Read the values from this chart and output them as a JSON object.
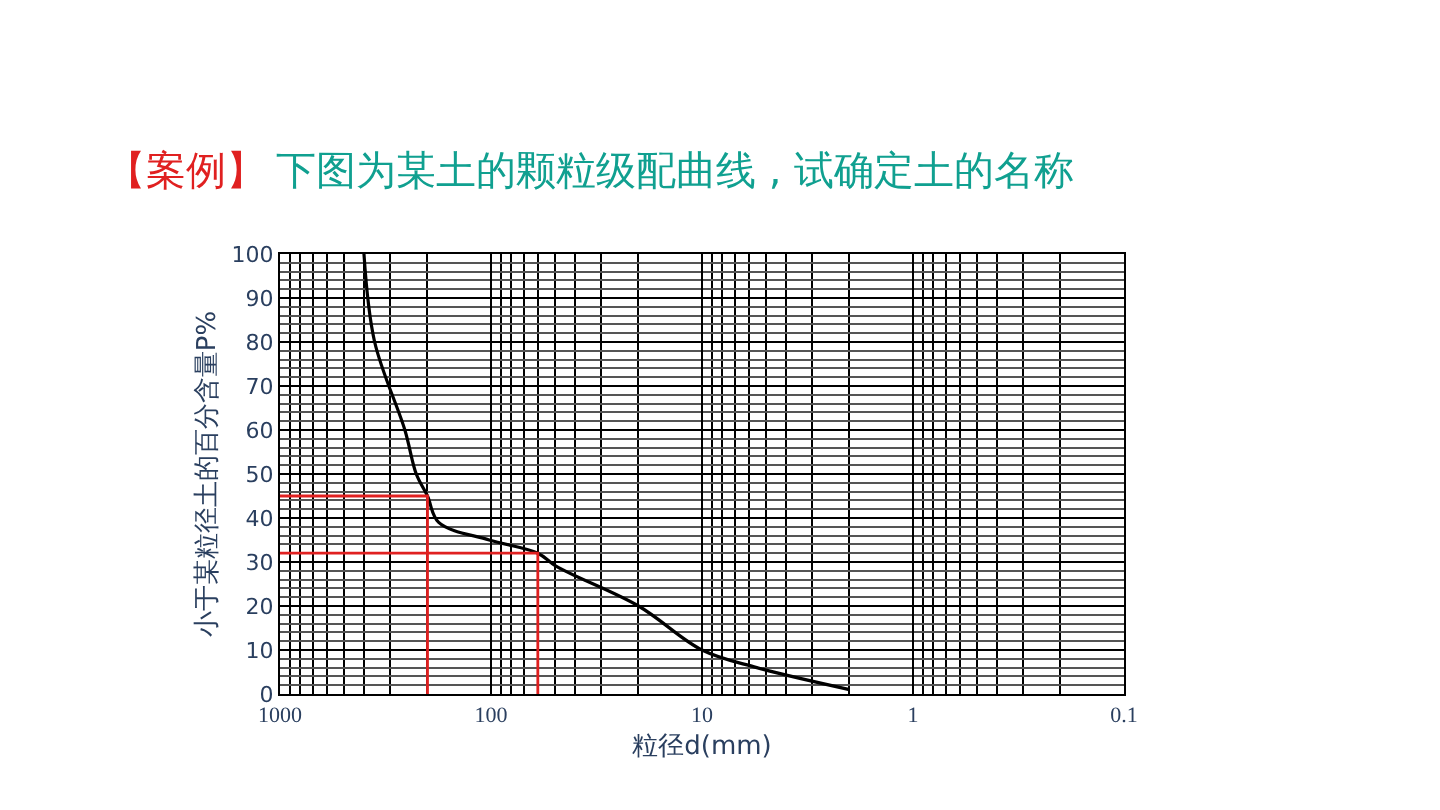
{
  "chart_data": {
    "type": "line",
    "title": "下图为某土的颗粒级配曲线 , 试确定土的名称",
    "annotations": [
      "【案例】"
    ],
    "xlabel": "粒径d(mm)",
    "ylabel": "小于某粒径土的百分含量P%",
    "log": "x",
    "grid": true,
    "marker": "none",
    "line_style": "solid",
    "xlim": [
      1000,
      0.1
    ],
    "xticks": [
      1000,
      100,
      10,
      1,
      0.1
    ],
    "ylim": [
      0,
      100
    ],
    "yticks": [
      0,
      10,
      20,
      30,
      40,
      50,
      60,
      70,
      80,
      90,
      100
    ],
    "series": [
      {
        "color": "#000000",
        "x": [
          400,
          356,
          256,
          226,
          200,
          177,
          102,
          60,
          49,
          20,
          10,
          5.5,
          2
        ],
        "values": [
          100,
          80,
          60,
          50,
          45,
          39,
          35,
          32,
          29,
          20,
          10,
          6,
          1
        ]
      },
      {
        "color": "#e02020",
        "x": [
          1000,
          200,
          200
        ],
        "values": [
          45,
          45,
          0
        ]
      },
      {
        "color": "#e02020",
        "x": [
          1000,
          60,
          60
        ],
        "values": [
          32,
          32,
          0
        ]
      }
    ]
  }
}
